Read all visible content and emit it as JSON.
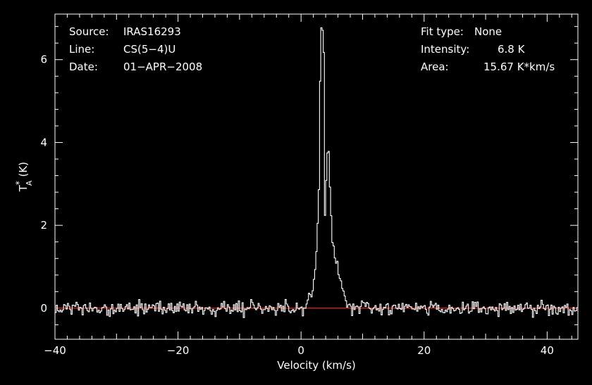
{
  "chart_data": {
    "type": "line",
    "xlabel": "Velocity (km/s)",
    "ylabel": "T",
    "ylabel_sup": "*",
    "ylabel_sub": "A",
    "ylabel_unit": "(K)",
    "xlim": [
      -40,
      45
    ],
    "ylim": [
      -0.75,
      7.1
    ],
    "x_ticks": [
      -40,
      -20,
      0,
      20,
      40
    ],
    "x_tick_labels": [
      "−40",
      "−20",
      "0",
      "20",
      "40"
    ],
    "y_ticks": [
      0,
      2,
      4,
      6
    ],
    "y_tick_labels": [
      "0",
      "2",
      "4",
      "6"
    ],
    "grid": false,
    "baseline": {
      "y": 0,
      "color": "#d42020"
    },
    "line_color": "#ffffff",
    "noise_sigma": 0.09,
    "noise_seed": 16293,
    "x_step": 0.2,
    "peak_shape": [
      [
        -1,
        0.0
      ],
      [
        0.5,
        0.08
      ],
      [
        1.0,
        0.18
      ],
      [
        1.5,
        0.28
      ],
      [
        2.0,
        0.5
      ],
      [
        2.3,
        0.9
      ],
      [
        2.6,
        1.6
      ],
      [
        2.9,
        3.0
      ],
      [
        3.1,
        5.5
      ],
      [
        3.3,
        6.75
      ],
      [
        3.5,
        6.8
      ],
      [
        3.7,
        6.2
      ],
      [
        3.9,
        2.2
      ],
      [
        4.1,
        3.1
      ],
      [
        4.3,
        3.8
      ],
      [
        4.5,
        3.7
      ],
      [
        4.8,
        2.6
      ],
      [
        5.1,
        1.6
      ],
      [
        5.5,
        1.2
      ],
      [
        6.0,
        0.9
      ],
      [
        6.5,
        0.6
      ],
      [
        6.9,
        0.35
      ],
      [
        7.4,
        0.1
      ],
      [
        8.0,
        0.0
      ]
    ]
  },
  "info": {
    "source_label": "Source:",
    "source_value": "IRAS16293",
    "line_label": "Line:",
    "line_value": "CS(5−4)U",
    "date_label": "Date:",
    "date_value": "01−APR−2008",
    "fit_label": "Fit type:",
    "fit_value": "None",
    "intensity_label": "Intensity:",
    "intensity_value": "6.8 K",
    "area_label": "Area:",
    "area_value": "15.67 K*km/s"
  }
}
